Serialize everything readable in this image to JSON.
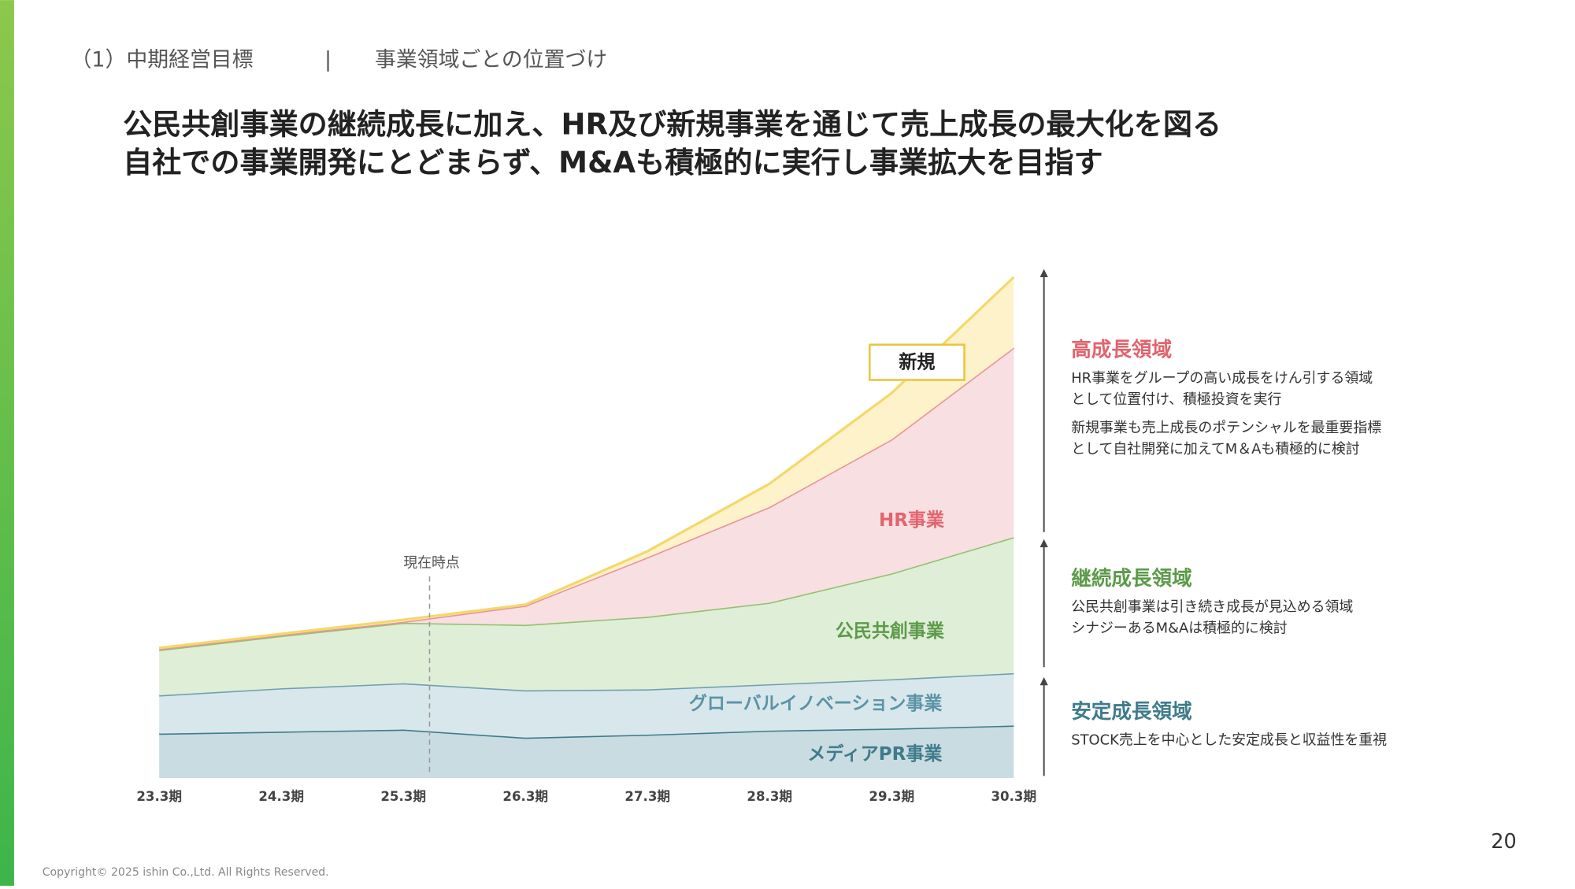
{
  "header": {
    "section": "（1）中期経営目標",
    "separator": "|",
    "subtitle": "事業領域ごとの位置づけ"
  },
  "headline": [
    "公民共創事業の継続成長に加え、HR及び新規事業を通じて売上成長の最大化を図る",
    "自社での事業開発にとどまらず、M&Aも積極的に実行し事業拡大を目指す"
  ],
  "chart_data": {
    "type": "area",
    "stacked": true,
    "categories": [
      "23.3期",
      "24.3期",
      "25.3期",
      "26.3期",
      "27.3期",
      "28.3期",
      "29.3期",
      "30.3期"
    ],
    "ylim": [
      0,
      100
    ],
    "series": [
      {
        "name": "メディアPR事業",
        "color": "#3f7b8b",
        "fill": "#c9dce1",
        "values": [
          8.8,
          9.2,
          9.6,
          8.0,
          8.6,
          9.4,
          9.8,
          10.4
        ]
      },
      {
        "name": "グローバルイノベーション事業",
        "color": "#6fa0b0",
        "fill": "#d8e7eb",
        "values": [
          7.6,
          8.6,
          9.2,
          9.4,
          9.0,
          9.2,
          9.8,
          10.4
        ]
      },
      {
        "name": "公民共創事業",
        "color": "#92c16f",
        "fill": "#dfeed7",
        "values": [
          9.0,
          10.4,
          12.0,
          13.0,
          14.4,
          16.2,
          21.0,
          27.0
        ]
      },
      {
        "name": "HR事業",
        "color": "#e8949b",
        "fill": "#f8dfe2",
        "values": [
          0.2,
          0.2,
          0.2,
          3.8,
          11.8,
          19.0,
          26.6,
          37.6
        ]
      },
      {
        "name": "新規",
        "color": "#f4d86b",
        "fill": "#fdf2c9",
        "values": [
          0.2,
          0.2,
          0.4,
          0.2,
          1.2,
          4.6,
          9.2,
          14.0
        ]
      }
    ],
    "annotations": [
      {
        "text": "現在時点",
        "x": "25.3期"
      }
    ]
  },
  "side_panel": [
    {
      "heading": "高成長領域",
      "color": "#e2646d",
      "paragraphs": [
        [
          "HR事業をグループの高い成長をけん引する領域",
          "として位置付け、積極投資を実行"
        ],
        [
          "新規事業も売上成長のポテンシャルを最重要指標",
          "として自社開発に加えてM＆Aも積極的に検討"
        ]
      ]
    },
    {
      "heading": "継続成長領域",
      "color": "#5c9b49",
      "paragraphs": [
        [
          "公民共創事業は引き続き成長が見込める領域",
          "シナジーあるM&Aは積極的に検討"
        ]
      ]
    },
    {
      "heading": "安定成長領域",
      "color": "#3f7b8b",
      "paragraphs": [
        [
          "STOCK売上を中心とした安定成長と収益性を重視"
        ]
      ]
    }
  ],
  "page_number": "20",
  "copyright": "Copyright© 2025 ishin Co.,Ltd. All Rights Reserved."
}
